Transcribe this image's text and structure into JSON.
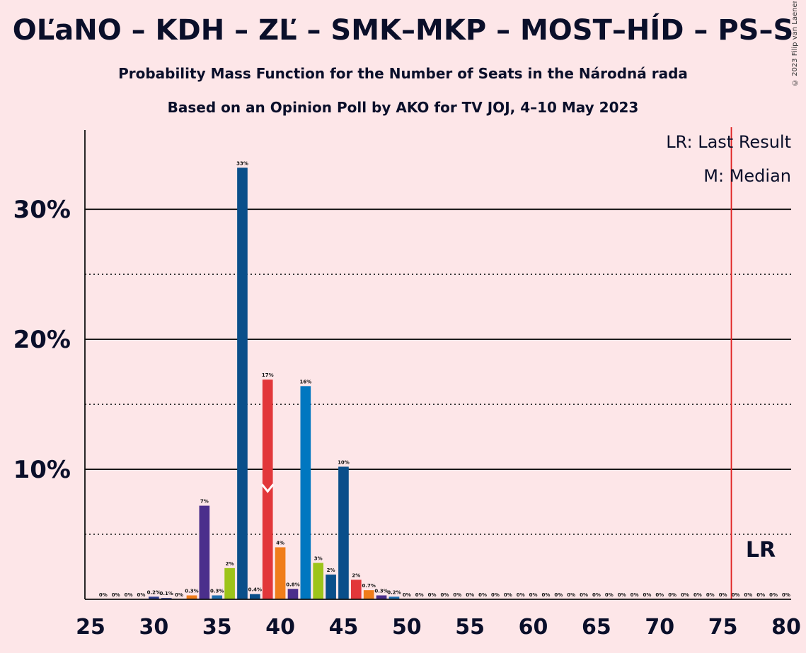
{
  "header": {
    "title": "OĽaNO – KDH – ZĽ – SMK–MKP – MOST–HÍD – PS–S",
    "subtitle": "Probability Mass Function for the Number of Seats in the Národná rada",
    "subtitle2": "Based on an Opinion Poll by AKO for TV JOJ, 4–10 May 2023",
    "copyright": "© 2023 Filip van Laenen"
  },
  "legend": {
    "lr": "LR: Last Result",
    "median": "M: Median"
  },
  "lr_marker": "LR",
  "colors": {
    "background": "#fde6e8",
    "last_result_line": "#e02020",
    "text": "#0a0f2a",
    "palette": [
      "#2e3d8f",
      "#5b3a8e",
      "#1f6fb0",
      "#9dc41a",
      "#0a5a8f",
      "#e2373a",
      "#f07d1a",
      "#0077c0",
      "#9dc41a",
      "#1f5a9e"
    ]
  },
  "chart_data": {
    "type": "bar",
    "xlim": [
      25,
      80
    ],
    "ylim": [
      0,
      35
    ],
    "x_ticks": [
      25,
      30,
      35,
      40,
      45,
      50,
      55,
      60,
      65,
      70,
      75,
      80
    ],
    "y_ticks": [
      10,
      20,
      30
    ],
    "y_tick_labels": [
      "10%",
      "20%",
      "30%"
    ],
    "y_minor_gridlines": [
      5,
      15,
      25
    ],
    "last_result": 76,
    "median": 39,
    "x": [
      26,
      27,
      28,
      29,
      30,
      31,
      32,
      33,
      34,
      35,
      36,
      37,
      38,
      39,
      40,
      41,
      42,
      43,
      44,
      45,
      46,
      47,
      48,
      49,
      50,
      51,
      52,
      53,
      54,
      55,
      56,
      57,
      58,
      59,
      60,
      61,
      62,
      63,
      64,
      65,
      66,
      67,
      68,
      69,
      70,
      71,
      72,
      73,
      74,
      75,
      76,
      77,
      78,
      79,
      80
    ],
    "values": [
      0,
      0,
      0,
      0,
      0.2,
      0.1,
      0,
      0.3,
      7.2,
      0.3,
      2.4,
      33.2,
      0.4,
      16.9,
      4.0,
      0.8,
      16.4,
      2.8,
      1.9,
      10.2,
      1.5,
      0.7,
      0.3,
      0.2,
      0,
      0,
      0,
      0,
      0,
      0,
      0,
      0,
      0,
      0,
      0,
      0,
      0,
      0,
      0,
      0,
      0,
      0,
      0,
      0,
      0,
      0,
      0,
      0,
      0,
      0,
      0,
      0,
      0,
      0,
      0
    ],
    "labels": [
      "0%",
      "0%",
      "0%",
      "0%",
      "0.2%",
      "0.1%",
      "0%",
      "0.3%",
      "7%",
      "0.3%",
      "2%",
      "33%",
      "0.4%",
      "17%",
      "4%",
      "0.8%",
      "16%",
      "3%",
      "2%",
      "10%",
      "2%",
      "0.7%",
      "0.3%",
      "0.2%",
      "0%",
      "0%",
      "0%",
      "0%",
      "0%",
      "0%",
      "0%",
      "0%",
      "0%",
      "0%",
      "0%",
      "0%",
      "0%",
      "0%",
      "0%",
      "0%",
      "0%",
      "0%",
      "0%",
      "0%",
      "0%",
      "0%",
      "0%",
      "0%",
      "0%",
      "0%",
      "0%",
      "0%",
      "0%",
      "0%",
      "0%"
    ],
    "colors": [
      "#2e3d8f",
      "#2e3d8f",
      "#2e3d8f",
      "#2e3d8f",
      "#2e3d8f",
      "#2e3d8f",
      "#2e3d8f",
      "#f07d1a",
      "#4b2f8c",
      "#1f6fb0",
      "#9dc41a",
      "#0a4f8a",
      "#0a4f8a",
      "#e2373a",
      "#f07d1a",
      "#4b2f8c",
      "#0077c0",
      "#9dc41a",
      "#0a4f8a",
      "#0a4f8a",
      "#e2373a",
      "#f07d1a",
      "#4b2f8c",
      "#1f6fb0",
      "#2e3d8f",
      "#2e3d8f",
      "#2e3d8f",
      "#2e3d8f",
      "#2e3d8f",
      "#2e3d8f",
      "#2e3d8f",
      "#2e3d8f",
      "#2e3d8f",
      "#2e3d8f",
      "#2e3d8f",
      "#2e3d8f",
      "#2e3d8f",
      "#2e3d8f",
      "#2e3d8f",
      "#2e3d8f",
      "#2e3d8f",
      "#2e3d8f",
      "#2e3d8f",
      "#2e3d8f",
      "#2e3d8f",
      "#2e3d8f",
      "#2e3d8f",
      "#2e3d8f",
      "#2e3d8f",
      "#2e3d8f",
      "#2e3d8f",
      "#2e3d8f",
      "#2e3d8f",
      "#2e3d8f",
      "#2e3d8f"
    ]
  }
}
